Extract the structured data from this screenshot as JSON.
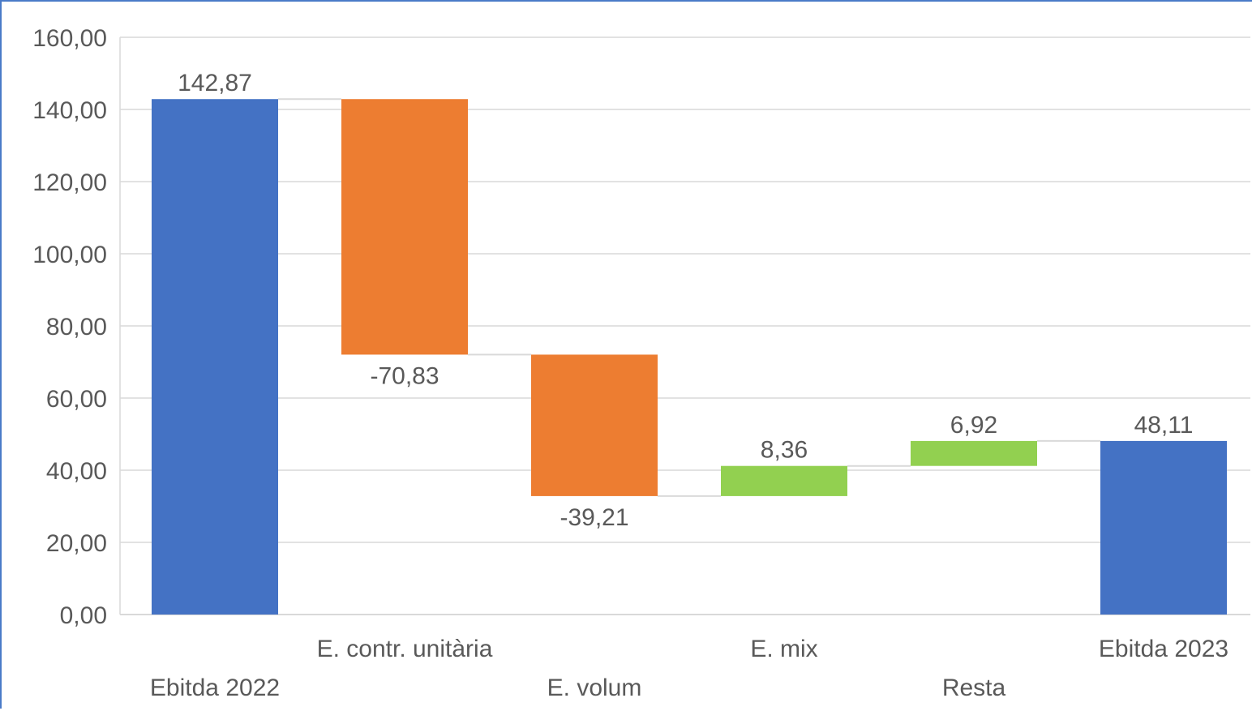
{
  "chart_data": {
    "type": "waterfall",
    "categories": [
      "Ebitda 2022",
      "E. contr. unitària",
      "E. volum",
      "E. mix",
      "Resta",
      "Ebitda 2023"
    ],
    "values": [
      142.87,
      -70.83,
      -39.21,
      8.36,
      6.92,
      48.11
    ],
    "value_labels": [
      "142,87",
      "-70,83",
      "-39,21",
      "8,36",
      "6,92",
      "48,11"
    ],
    "kinds": [
      "total",
      "decrease",
      "decrease",
      "increase",
      "increase",
      "total"
    ],
    "ylim": [
      0,
      160
    ],
    "yticks": [
      0,
      20,
      40,
      60,
      80,
      100,
      120,
      140,
      160
    ],
    "ytick_labels": [
      "0,00",
      "20,00",
      "40,00",
      "60,00",
      "80,00",
      "100,00",
      "120,00",
      "140,00",
      "160,00"
    ],
    "grid": true,
    "legend": "none",
    "colors": {
      "total": "#4472c4",
      "decrease": "#ed7d31",
      "increase": "#92d050",
      "grid": "#d9d9d9",
      "connector": "#d9d9d9",
      "text": "#595959"
    }
  }
}
